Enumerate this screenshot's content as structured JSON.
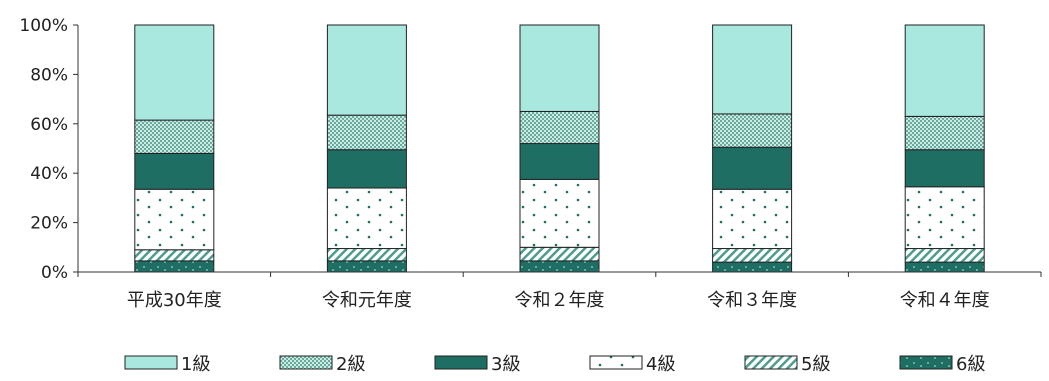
{
  "chart_data": {
    "type": "bar",
    "stacked": true,
    "percent": true,
    "categories": [
      "平成30年度",
      "令和元年度",
      "令和２年度",
      "令和３年度",
      "令和４年度"
    ],
    "series": [
      {
        "name": "6級",
        "values": [
          4.5,
          4.5,
          4.5,
          4.0,
          4.0
        ],
        "fill": "#1e6e63",
        "pattern": "dots-light"
      },
      {
        "name": "5級",
        "values": [
          4.5,
          5.0,
          5.5,
          5.5,
          5.5
        ],
        "fill": "#ffffff",
        "pattern": "diagonal"
      },
      {
        "name": "4級",
        "values": [
          24.5,
          24.5,
          27.5,
          24.0,
          25.0
        ],
        "fill": "#ffffff",
        "pattern": "dots"
      },
      {
        "name": "3級",
        "values": [
          14.5,
          15.5,
          14.5,
          17.0,
          15.0
        ],
        "fill": "#1e6e63",
        "pattern": "solid"
      },
      {
        "name": "2級",
        "values": [
          13.5,
          14.0,
          13.0,
          13.5,
          13.5
        ],
        "fill": "#9fd2c8",
        "pattern": "checker"
      },
      {
        "name": "1級",
        "values": [
          38.5,
          36.5,
          35.0,
          36.0,
          37.0
        ],
        "fill": "#a8e8de",
        "pattern": "solid"
      }
    ],
    "yticks": [
      "0%",
      "20%",
      "40%",
      "60%",
      "80%",
      "100%"
    ],
    "ylim": [
      0,
      100
    ],
    "grid": false,
    "legend_position": "bottom",
    "legend_order": [
      "1級",
      "2級",
      "3級",
      "4級",
      "5級",
      "6級"
    ]
  }
}
